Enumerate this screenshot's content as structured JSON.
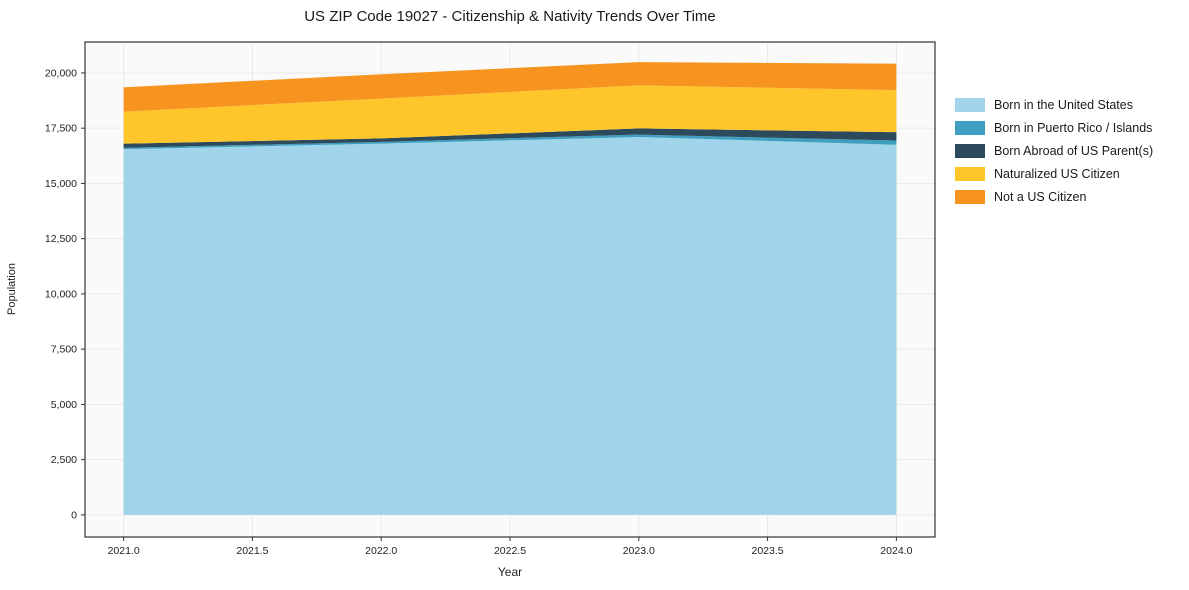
{
  "title": "US ZIP Code 19027 - Citizenship & Nativity Trends Over Time",
  "chart_data": {
    "type": "area",
    "stacked": true,
    "title": "US ZIP Code 19027 - Citizenship & Nativity Trends Over Time",
    "xlabel": "Year",
    "ylabel": "Population",
    "x": [
      2021,
      2022,
      2023,
      2024
    ],
    "series": [
      {
        "name": "Born in the United States",
        "color": "#9fd4ea",
        "values": [
          16550,
          16800,
          17100,
          16750
        ]
      },
      {
        "name": "Born in Puerto Rico / Islands",
        "color": "#3f9fc0",
        "values": [
          60,
          80,
          110,
          190
        ]
      },
      {
        "name": "Born Abroad of US Parent(s)",
        "color": "#2d4a5c",
        "values": [
          190,
          160,
          280,
          380
        ]
      },
      {
        "name": "Naturalized US Citizen",
        "color": "#ffc62c",
        "values": [
          1450,
          1800,
          1950,
          1900
        ]
      },
      {
        "name": "Not a US Citizen",
        "color": "#f79420",
        "values": [
          1100,
          1100,
          1050,
          1200
        ]
      }
    ],
    "x_ticks": [
      2021.0,
      2021.5,
      2022.0,
      2022.5,
      2023.0,
      2023.5,
      2024.0
    ],
    "y_ticks": [
      0,
      2500,
      5000,
      7500,
      10000,
      12500,
      15000,
      17500,
      20000
    ],
    "xlim": [
      2020.85,
      2024.15
    ],
    "ylim": [
      -1000,
      21400
    ],
    "grid": true,
    "legend_position": "right",
    "plot_background": "#fafafa",
    "grid_color": "#e9e9e9",
    "frame_color": "#333333",
    "tick_color": "#222222"
  }
}
